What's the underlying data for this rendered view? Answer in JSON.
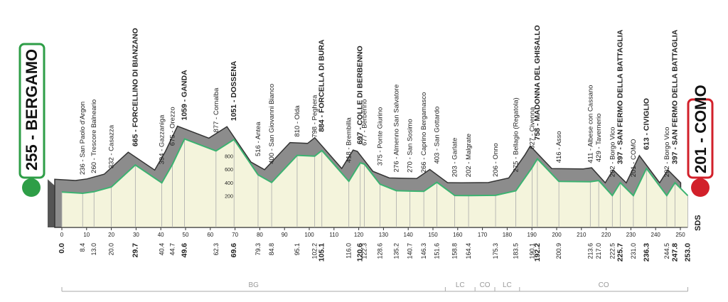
{
  "chart_data": {
    "type": "profile",
    "start": {
      "label": "255 - BERGAMO",
      "elevation": 255
    },
    "finish": {
      "label": "201 - COMO",
      "elevation": 201
    },
    "xlim": [
      0,
      250
    ],
    "xticks": [
      0,
      10,
      20,
      30,
      40,
      50,
      60,
      70,
      80,
      90,
      100,
      110,
      120,
      130,
      140,
      150,
      160,
      170,
      180,
      190,
      200,
      210,
      220,
      230,
      240,
      250
    ],
    "ylim": [
      0,
      1000
    ],
    "yticks": [
      200,
      400,
      600,
      800
    ],
    "line_color": "#3cb371",
    "fill_color": "#f4f4dc",
    "shadow_color": "#8c8c8c",
    "waypoints": [
      {
        "label": "",
        "elevation": 255,
        "km": 0,
        "km_label": "0.0",
        "bold": true
      },
      {
        "label": "236 - San Paolo d'Argon",
        "elevation": 236,
        "km": 8.4,
        "km_label": "8.4",
        "bold": false
      },
      {
        "label": "260 - Trescore Balneario",
        "elevation": 260,
        "km": 13.0,
        "km_label": "13.0",
        "bold": false
      },
      {
        "label": "332 - Casazza",
        "elevation": 332,
        "km": 20.0,
        "km_label": "20.0",
        "bold": false
      },
      {
        "label": "665 - FORCELLINO DI BIANZANO",
        "elevation": 665,
        "km": 29.7,
        "km_label": "29.7",
        "bold": true
      },
      {
        "label": "394 - Gazzaniga",
        "elevation": 394,
        "km": 40.4,
        "km_label": "40.4",
        "bold": false
      },
      {
        "label": "675 - Orezzo",
        "elevation": 675,
        "km": 44.7,
        "km_label": "44.7",
        "bold": false
      },
      {
        "label": "1059 - GANDA",
        "elevation": 1059,
        "km": 49.6,
        "km_label": "49.6",
        "bold": true
      },
      {
        "label": "877 - Cornalba",
        "elevation": 877,
        "km": 62.3,
        "km_label": "62.3",
        "bold": false
      },
      {
        "label": "1051 - DOSSENA",
        "elevation": 1051,
        "km": 69.6,
        "km_label": "69.6",
        "bold": true
      },
      {
        "label": "516 - Antea",
        "elevation": 516,
        "km": 79.3,
        "km_label": "79.3",
        "bold": false
      },
      {
        "label": "400 - San Giovanni Bianco",
        "elevation": 400,
        "km": 84.8,
        "km_label": "84.8",
        "bold": false
      },
      {
        "label": "810 - Olda",
        "elevation": 810,
        "km": 95.1,
        "km_label": "95.1",
        "bold": false
      },
      {
        "label": "798 - Peghera",
        "elevation": 798,
        "km": 102.2,
        "km_label": "102.2",
        "bold": false
      },
      {
        "label": "884 - FORCELLA DI BURA",
        "elevation": 884,
        "km": 105.1,
        "km_label": "105.1",
        "bold": true
      },
      {
        "label": "418 - Brembilla",
        "elevation": 418,
        "km": 116.0,
        "km_label": "116.0",
        "bold": false
      },
      {
        "label": "697 - COLLE DI BERBENNO",
        "elevation": 697,
        "km": 120.6,
        "km_label": "120.6",
        "bold": true
      },
      {
        "label": "677 - Berbenno",
        "elevation": 677,
        "km": 122.3,
        "km_label": "122.3",
        "bold": false
      },
      {
        "label": "375 - Ponte Giurino",
        "elevation": 375,
        "km": 128.6,
        "km_label": "128.6",
        "bold": false
      },
      {
        "label": "276 - Almenno San Salvatore",
        "elevation": 276,
        "km": 135.2,
        "km_label": "135.2",
        "bold": false
      },
      {
        "label": "270 - San Sosimo",
        "elevation": 270,
        "km": 140.7,
        "km_label": "140.7",
        "bold": false
      },
      {
        "label": "266 - Caprino Bergamasco",
        "elevation": 266,
        "km": 146.3,
        "km_label": "146.3",
        "bold": false
      },
      {
        "label": "403 - San Gottardo",
        "elevation": 403,
        "km": 151.6,
        "km_label": "151.6",
        "bold": false
      },
      {
        "label": "203 - Garlate",
        "elevation": 203,
        "km": 158.8,
        "km_label": "158.8",
        "bold": false
      },
      {
        "label": "202 - Malgrate",
        "elevation": 202,
        "km": 164.4,
        "km_label": "164.4",
        "bold": false
      },
      {
        "label": "206 - Onno",
        "elevation": 206,
        "km": 175.3,
        "km_label": "175.3",
        "bold": false
      },
      {
        "label": "275 - Bellagio (Regatola)",
        "elevation": 275,
        "km": 183.5,
        "km_label": "183.5",
        "bold": false
      },
      {
        "label": "627 - Civenna",
        "elevation": 627,
        "km": 190.1,
        "km_label": "190.1",
        "bold": false
      },
      {
        "label": "758 - MADONNA DEL GHISALLO",
        "elevation": 758,
        "km": 192.2,
        "km_label": "192.2",
        "bold": true
      },
      {
        "label": "416 - Asso",
        "elevation": 416,
        "km": 200.9,
        "km_label": "200.9",
        "bold": false
      },
      {
        "label": "411 - Albese con Cassano",
        "elevation": 411,
        "km": 213.6,
        "km_label": "213.6",
        "bold": false
      },
      {
        "label": "429 - Tavernerio",
        "elevation": 429,
        "km": 217.0,
        "km_label": "217.0",
        "bold": false
      },
      {
        "label": "202 - Borgo Vico",
        "elevation": 202,
        "km": 222.5,
        "km_label": "222.5",
        "bold": false
      },
      {
        "label": "397 - SAN FERMO DELLA BATTAGLIA",
        "elevation": 397,
        "km": 225.7,
        "km_label": "225.7",
        "bold": true
      },
      {
        "label": "201 - COMO",
        "elevation": 201,
        "km": 231.0,
        "km_label": "231.0",
        "bold": false
      },
      {
        "label": "613 - CIVIGLIO",
        "elevation": 613,
        "km": 236.3,
        "km_label": "236.3",
        "bold": true
      },
      {
        "label": "202 - Borgo Vico",
        "elevation": 202,
        "km": 244.5,
        "km_label": "244.5",
        "bold": false
      },
      {
        "label": "397 - SAN FERMO DELLA BATTAGLIA",
        "elevation": 397,
        "km": 247.8,
        "km_label": "247.8",
        "bold": true
      },
      {
        "label": "",
        "elevation": 201,
        "km": 253.0,
        "km_label": "253.0",
        "bold": true
      }
    ],
    "zones": [
      {
        "label": "BG",
        "from": 0,
        "to": 155
      },
      {
        "label": "LC",
        "from": 155,
        "to": 167
      },
      {
        "label": "CO",
        "from": 167,
        "to": 175
      },
      {
        "label": "LC",
        "from": 175,
        "to": 185
      },
      {
        "label": "CO",
        "from": 185,
        "to": 253
      }
    ],
    "footer": "SDS"
  }
}
